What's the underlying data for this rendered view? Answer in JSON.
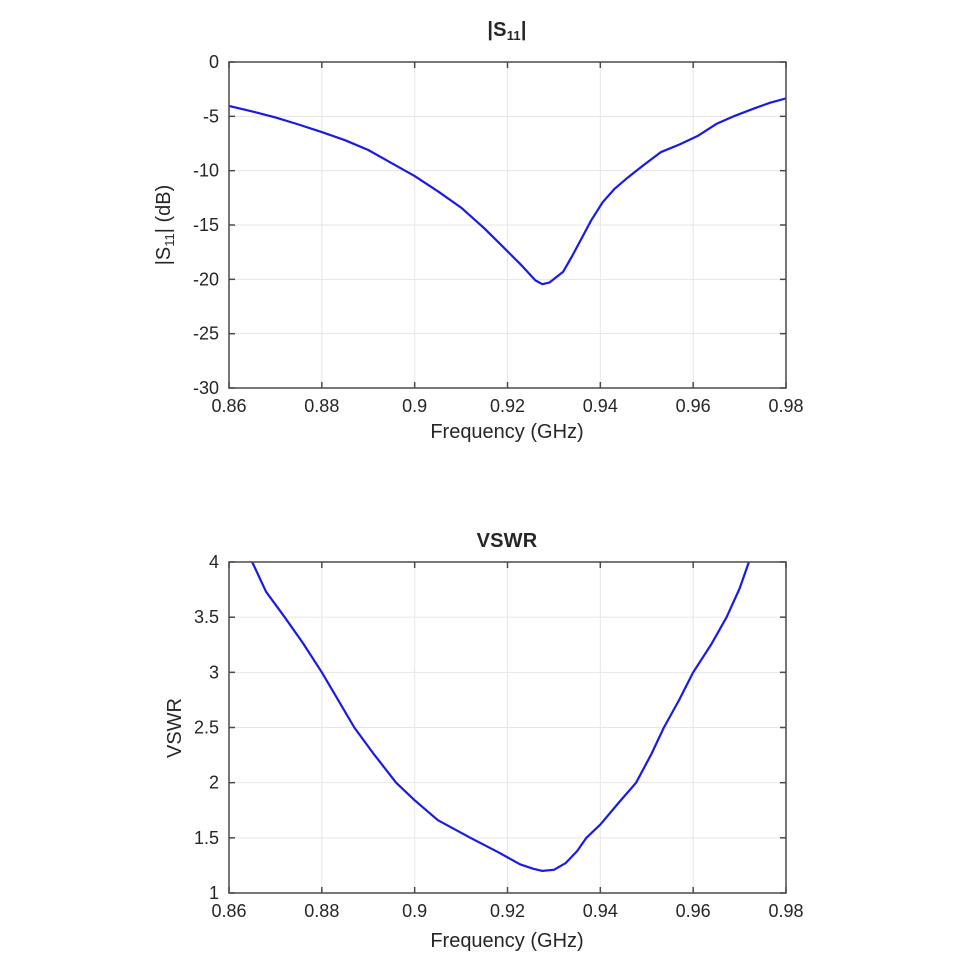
{
  "style": {
    "background": "#ffffff",
    "line_color": "#1a1ae6",
    "axis_color": "#4a4a4a",
    "grid_color": "#e6e6e6",
    "text_color": "#262626"
  },
  "chart_data": [
    {
      "id": "s11",
      "type": "line",
      "title": {
        "pre": "|S",
        "sub": "11",
        "post": "|"
      },
      "xlabel": "Frequency (GHz)",
      "ylabel": {
        "pre": "|S",
        "sub": "11",
        "post": "| (dB)"
      },
      "xlim": [
        0.86,
        0.98
      ],
      "ylim": [
        -30,
        0
      ],
      "grid": true,
      "legend": "none",
      "xticks": {
        "values": [
          0.86,
          0.88,
          0.9,
          0.92,
          0.94,
          0.96,
          0.98
        ],
        "labels": [
          "0.86",
          "0.88",
          "0.9",
          "0.92",
          "0.94",
          "0.96",
          "0.98"
        ]
      },
      "yticks": {
        "values": [
          0,
          -5,
          -10,
          -15,
          -20,
          -25,
          -30
        ],
        "labels": [
          "0",
          "-5",
          "-10",
          "-15",
          "-20",
          "-25",
          "-30"
        ]
      },
      "line_color": "#1a1ae6",
      "series": [
        {
          "name": "S11 magnitude (dB)",
          "points": [
            [
              0.86,
              -4.05
            ],
            [
              0.8625,
              -4.3
            ],
            [
              0.865,
              -4.55
            ],
            [
              0.87,
              -5.1
            ],
            [
              0.875,
              -5.75
            ],
            [
              0.88,
              -6.45
            ],
            [
              0.885,
              -7.2
            ],
            [
              0.89,
              -8.1
            ],
            [
              0.895,
              -9.3
            ],
            [
              0.9,
              -10.5
            ],
            [
              0.905,
              -11.9
            ],
            [
              0.91,
              -13.4
            ],
            [
              0.915,
              -15.3
            ],
            [
              0.919,
              -17.0
            ],
            [
              0.923,
              -18.7
            ],
            [
              0.926,
              -20.1
            ],
            [
              0.9275,
              -20.45
            ],
            [
              0.929,
              -20.3
            ],
            [
              0.932,
              -19.3
            ],
            [
              0.934,
              -17.8
            ],
            [
              0.936,
              -16.2
            ],
            [
              0.938,
              -14.6
            ],
            [
              0.9405,
              -12.9
            ],
            [
              0.943,
              -11.7
            ],
            [
              0.946,
              -10.6
            ],
            [
              0.949,
              -9.6
            ],
            [
              0.953,
              -8.3
            ],
            [
              0.957,
              -7.6
            ],
            [
              0.961,
              -6.8
            ],
            [
              0.965,
              -5.7
            ],
            [
              0.969,
              -4.95
            ],
            [
              0.973,
              -4.3
            ],
            [
              0.9765,
              -3.75
            ],
            [
              0.98,
              -3.35
            ]
          ]
        }
      ]
    },
    {
      "id": "vswr",
      "type": "line",
      "title": {
        "pre": "VSWR",
        "sub": "",
        "post": ""
      },
      "xlabel": "Frequency (GHz)",
      "ylabel": {
        "pre": "VSWR",
        "sub": "",
        "post": ""
      },
      "xlim": [
        0.86,
        0.98
      ],
      "ylim": [
        1,
        4
      ],
      "grid": true,
      "legend": "none",
      "xticks": {
        "values": [
          0.86,
          0.88,
          0.9,
          0.92,
          0.94,
          0.96,
          0.98
        ],
        "labels": [
          "0.86",
          "0.88",
          "0.9",
          "0.92",
          "0.94",
          "0.96",
          "0.98"
        ]
      },
      "yticks": {
        "values": [
          4,
          3.5,
          3,
          2.5,
          2,
          1.5,
          1
        ],
        "labels": [
          "4",
          "3.5",
          "3",
          "2.5",
          "2",
          "1.5",
          "1"
        ]
      },
      "line_color": "#1a1ae6",
      "series": [
        {
          "name": "VSWR",
          "points": [
            [
              0.86,
              4.62
            ],
            [
              0.8625,
              4.3
            ],
            [
              0.865,
              4.0
            ],
            [
              0.868,
              3.73
            ],
            [
              0.872,
              3.5
            ],
            [
              0.876,
              3.26
            ],
            [
              0.88,
              3.0
            ],
            [
              0.8835,
              2.75
            ],
            [
              0.887,
              2.5
            ],
            [
              0.891,
              2.27
            ],
            [
              0.896,
              2.0
            ],
            [
              0.9,
              1.84
            ],
            [
              0.905,
              1.66
            ],
            [
              0.912,
              1.5
            ],
            [
              0.918,
              1.37
            ],
            [
              0.9227,
              1.26
            ],
            [
              0.9255,
              1.22
            ],
            [
              0.9275,
              1.2
            ],
            [
              0.93,
              1.21
            ],
            [
              0.9325,
              1.27
            ],
            [
              0.935,
              1.38
            ],
            [
              0.937,
              1.5
            ],
            [
              0.94,
              1.62
            ],
            [
              0.944,
              1.82
            ],
            [
              0.9477,
              2.0
            ],
            [
              0.951,
              2.26
            ],
            [
              0.9537,
              2.5
            ],
            [
              0.957,
              2.75
            ],
            [
              0.96,
              3.0
            ],
            [
              0.964,
              3.26
            ],
            [
              0.9672,
              3.5
            ],
            [
              0.97,
              3.76
            ],
            [
              0.972,
              4.0
            ],
            [
              0.974,
              4.3
            ]
          ]
        }
      ]
    }
  ]
}
